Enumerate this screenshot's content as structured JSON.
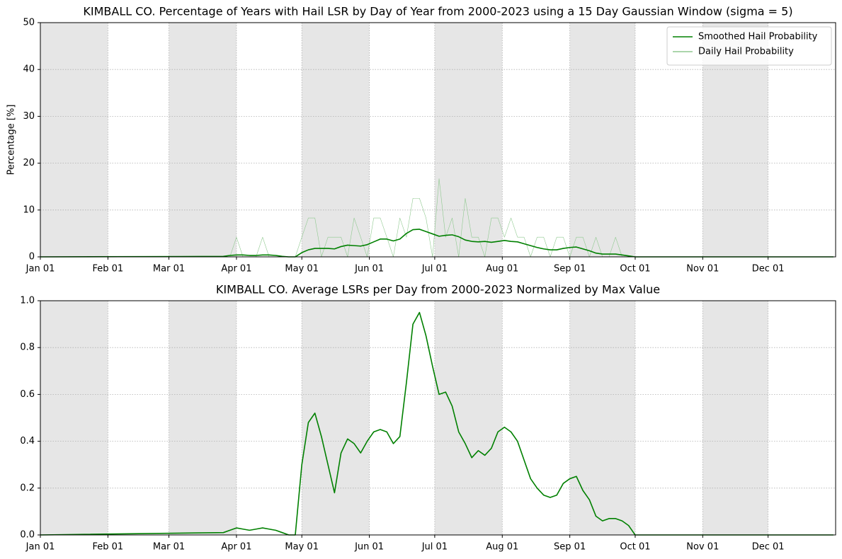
{
  "chart_data": [
    {
      "type": "line",
      "title": "KIMBALL CO. Percentage of Years with Hail LSR by Day of Year from 2000-2023 using a 15 Day Gaussian Window (sigma = 5)",
      "y_label": "Percentage [%]",
      "x": [
        1,
        85,
        88,
        91,
        94,
        97,
        100,
        103,
        106,
        109,
        112,
        115,
        118,
        121,
        124,
        127,
        130,
        133,
        136,
        139,
        142,
        145,
        148,
        151,
        154,
        157,
        160,
        163,
        166,
        169,
        172,
        175,
        178,
        181,
        184,
        187,
        190,
        193,
        196,
        199,
        202,
        205,
        208,
        211,
        214,
        217,
        220,
        223,
        226,
        229,
        232,
        235,
        238,
        241,
        244,
        247,
        250,
        253,
        256,
        259,
        262,
        265,
        268,
        271,
        274,
        277,
        365
      ],
      "xlim": [
        1,
        366
      ],
      "xticks": [
        {
          "value": 1,
          "label": "Jan 01"
        },
        {
          "value": 32,
          "label": "Feb 01"
        },
        {
          "value": 60,
          "label": "Mar 01"
        },
        {
          "value": 91,
          "label": "Apr 01"
        },
        {
          "value": 121,
          "label": "May 01"
        },
        {
          "value": 152,
          "label": "Jun 01"
        },
        {
          "value": 182,
          "label": "Jul 01"
        },
        {
          "value": 213,
          "label": "Aug 01"
        },
        {
          "value": 244,
          "label": "Sep 01"
        },
        {
          "value": 274,
          "label": "Oct 01"
        },
        {
          "value": 305,
          "label": "Nov 01"
        },
        {
          "value": 335,
          "label": "Dec 01"
        }
      ],
      "ylim": [
        0,
        50
      ],
      "yticks": [
        0,
        10,
        20,
        30,
        40,
        50
      ],
      "grid": true,
      "shade_alternate_months": true,
      "legend": "upper right",
      "series": [
        {
          "name": "Smoothed Hail Probability",
          "color": "#008000",
          "width": 1.6,
          "values": [
            0,
            0.1,
            0.3,
            0.4,
            0.4,
            0.3,
            0.3,
            0.4,
            0.4,
            0.3,
            0.1,
            0,
            0,
            0.9,
            1.5,
            1.8,
            1.8,
            1.8,
            1.7,
            2.2,
            2.5,
            2.4,
            2.3,
            2.6,
            3.2,
            3.8,
            3.8,
            3.4,
            3.8,
            5.0,
            5.8,
            5.9,
            5.4,
            4.9,
            4.4,
            4.6,
            4.7,
            4.3,
            3.6,
            3.3,
            3.2,
            3.3,
            3.1,
            3.3,
            3.5,
            3.3,
            3.2,
            2.8,
            2.4,
            2.0,
            1.7,
            1.5,
            1.5,
            1.8,
            2.0,
            2.1,
            1.7,
            1.3,
            0.8,
            0.6,
            0.6,
            0.6,
            0.4,
            0.2,
            0,
            0,
            0
          ]
        },
        {
          "name": "Daily Hail Probability",
          "color": "#8fc98f",
          "width": 0.6,
          "values": [
            0,
            0,
            0,
            4.2,
            0,
            0,
            0,
            4.2,
            0,
            0,
            0,
            0,
            0,
            4.2,
            8.3,
            8.3,
            0,
            4.2,
            4.2,
            4.2,
            0,
            8.3,
            4.2,
            0,
            8.3,
            8.3,
            4.2,
            0,
            8.3,
            4.2,
            12.5,
            12.5,
            8.3,
            0,
            16.7,
            4.2,
            8.3,
            0,
            12.5,
            4.2,
            4.2,
            0,
            8.3,
            8.3,
            4.2,
            8.3,
            4.2,
            4.2,
            0,
            4.2,
            4.2,
            0,
            4.2,
            4.2,
            0,
            4.2,
            4.2,
            0,
            4.2,
            0,
            0,
            4.2,
            0,
            0,
            0,
            0,
            0
          ]
        }
      ]
    },
    {
      "type": "line",
      "title": "KIMBALL CO. Average LSRs per Day from 2000-2023 Normalized by Max Value",
      "x": [
        1,
        85,
        88,
        91,
        94,
        97,
        100,
        103,
        106,
        109,
        112,
        115,
        118,
        121,
        124,
        127,
        130,
        133,
        136,
        139,
        142,
        145,
        148,
        151,
        154,
        157,
        160,
        163,
        166,
        169,
        172,
        175,
        178,
        181,
        184,
        187,
        190,
        193,
        196,
        199,
        202,
        205,
        208,
        211,
        214,
        217,
        220,
        223,
        226,
        229,
        232,
        235,
        238,
        241,
        244,
        247,
        250,
        253,
        256,
        259,
        262,
        265,
        268,
        271,
        274,
        277,
        365
      ],
      "xlim": [
        1,
        366
      ],
      "xticks": [
        {
          "value": 1,
          "label": "Jan 01"
        },
        {
          "value": 32,
          "label": "Feb 01"
        },
        {
          "value": 60,
          "label": "Mar 01"
        },
        {
          "value": 91,
          "label": "Apr 01"
        },
        {
          "value": 121,
          "label": "May 01"
        },
        {
          "value": 152,
          "label": "Jun 01"
        },
        {
          "value": 182,
          "label": "Jul 01"
        },
        {
          "value": 213,
          "label": "Aug 01"
        },
        {
          "value": 244,
          "label": "Sep 01"
        },
        {
          "value": 274,
          "label": "Oct 01"
        },
        {
          "value": 305,
          "label": "Nov 01"
        },
        {
          "value": 335,
          "label": "Dec 01"
        }
      ],
      "ylim": [
        0,
        1
      ],
      "yticks": [
        {
          "value": 0,
          "label": "0.0"
        },
        0.2,
        0.4,
        0.6,
        0.8,
        {
          "value": 1,
          "label": "1.0"
        }
      ],
      "grid": true,
      "shade_alternate_months": true,
      "series": [
        {
          "color": "#008000",
          "width": 1.6,
          "values": [
            0,
            0.01,
            0.02,
            0.03,
            0.025,
            0.02,
            0.025,
            0.03,
            0.025,
            0.02,
            0.01,
            0,
            0,
            0.3,
            0.48,
            0.52,
            0.42,
            0.3,
            0.18,
            0.35,
            0.41,
            0.39,
            0.35,
            0.4,
            0.44,
            0.45,
            0.44,
            0.39,
            0.42,
            0.65,
            0.9,
            0.95,
            0.85,
            0.72,
            0.6,
            0.61,
            0.55,
            0.44,
            0.39,
            0.33,
            0.36,
            0.34,
            0.37,
            0.44,
            0.46,
            0.44,
            0.4,
            0.32,
            0.24,
            0.2,
            0.17,
            0.16,
            0.17,
            0.22,
            0.24,
            0.25,
            0.19,
            0.15,
            0.08,
            0.06,
            0.07,
            0.07,
            0.06,
            0.04,
            0,
            0,
            0
          ]
        }
      ]
    }
  ]
}
